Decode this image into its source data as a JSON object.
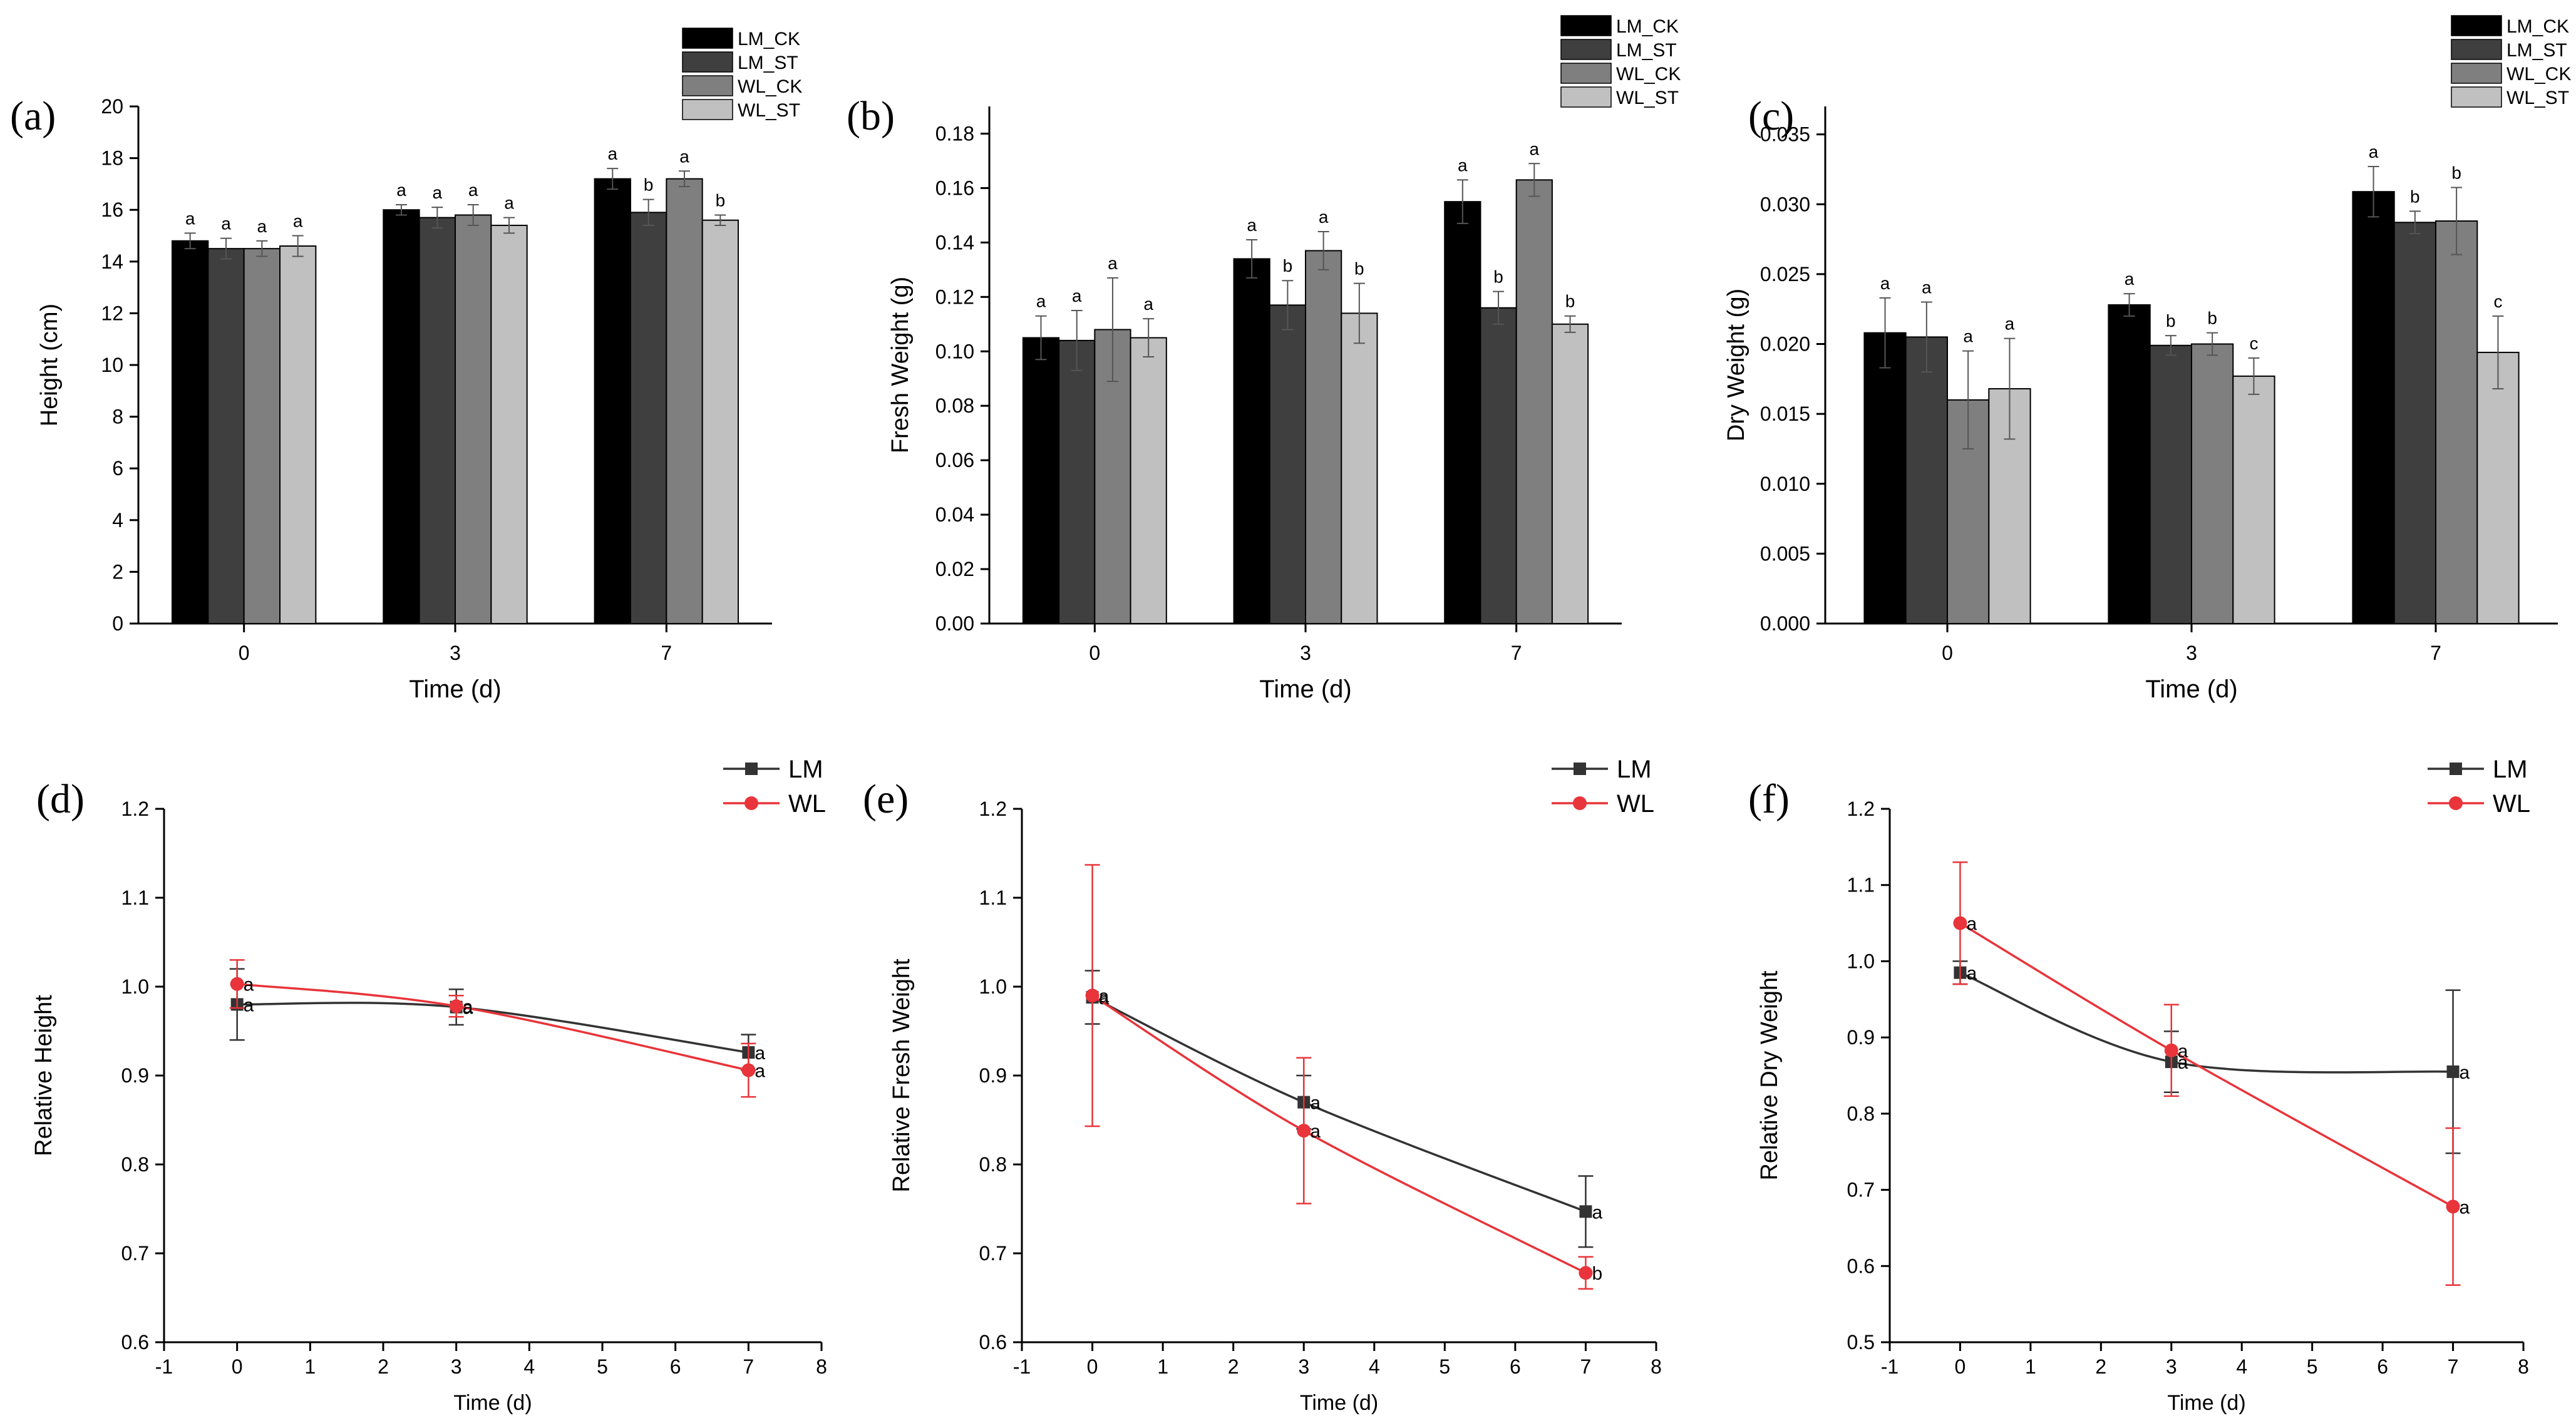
{
  "colors": {
    "LM_CK": "#000000",
    "LM_ST": "#3f3f3f",
    "WL_CK": "#7f7f7f",
    "WL_ST": "#c0c0c0",
    "LM_line": "#333333",
    "WL_line": "#e8343a"
  },
  "chart_data": [
    {
      "id": "a",
      "type": "bar",
      "panel_label": "(a)",
      "xlabel": "Time (d)",
      "ylabel": "Height (cm)",
      "categories": [
        "0",
        "3",
        "7"
      ],
      "ylim": [
        0,
        20
      ],
      "yticks": [
        "0",
        "2",
        "4",
        "6",
        "8",
        "10",
        "12",
        "14",
        "16",
        "18",
        "20"
      ],
      "legend": [
        "LM_CK",
        "LM_ST",
        "WL_CK",
        "WL_ST"
      ],
      "series": [
        {
          "name": "LM_CK",
          "values": [
            14.8,
            16.0,
            17.2
          ],
          "errors": [
            0.3,
            0.2,
            0.4
          ],
          "letters": [
            "a",
            "a",
            "a"
          ]
        },
        {
          "name": "LM_ST",
          "values": [
            14.5,
            15.7,
            15.9
          ],
          "errors": [
            0.4,
            0.4,
            0.5
          ],
          "letters": [
            "a",
            "a",
            "b"
          ]
        },
        {
          "name": "WL_CK",
          "values": [
            14.5,
            15.8,
            17.2
          ],
          "errors": [
            0.3,
            0.4,
            0.3
          ],
          "letters": [
            "a",
            "a",
            "a"
          ]
        },
        {
          "name": "WL_ST",
          "values": [
            14.6,
            15.4,
            15.6
          ],
          "errors": [
            0.4,
            0.3,
            0.2
          ],
          "letters": [
            "a",
            "a",
            "b"
          ]
        }
      ]
    },
    {
      "id": "b",
      "type": "bar",
      "panel_label": "(b)",
      "xlabel": "Time (d)",
      "ylabel": "Fresh Weight (g)",
      "categories": [
        "0",
        "3",
        "7"
      ],
      "ylim": [
        0,
        0.19
      ],
      "yticks": [
        "0.00",
        "0.02",
        "0.04",
        "0.06",
        "0.08",
        "0.10",
        "0.12",
        "0.14",
        "0.16",
        "0.18"
      ],
      "legend": [
        "LM_CK",
        "LM_ST",
        "WL_CK",
        "WL_ST"
      ],
      "series": [
        {
          "name": "LM_CK",
          "values": [
            0.105,
            0.134,
            0.155
          ],
          "errors": [
            0.008,
            0.007,
            0.008
          ],
          "letters": [
            "a",
            "a",
            "a"
          ]
        },
        {
          "name": "LM_ST",
          "values": [
            0.104,
            0.117,
            0.116
          ],
          "errors": [
            0.011,
            0.009,
            0.006
          ],
          "letters": [
            "a",
            "b",
            "b"
          ]
        },
        {
          "name": "WL_CK",
          "values": [
            0.108,
            0.137,
            0.163
          ],
          "errors": [
            0.019,
            0.007,
            0.006
          ],
          "letters": [
            "a",
            "a",
            "a"
          ]
        },
        {
          "name": "WL_ST",
          "values": [
            0.105,
            0.114,
            0.11
          ],
          "errors": [
            0.007,
            0.011,
            0.003
          ],
          "letters": [
            "a",
            "b",
            "b"
          ]
        }
      ]
    },
    {
      "id": "c",
      "type": "bar",
      "panel_label": "(c)",
      "xlabel": "Time (d)",
      "ylabel": "Dry Weight (g)",
      "categories": [
        "0",
        "3",
        "7"
      ],
      "ylim": [
        0,
        0.037
      ],
      "yticks": [
        "0.000",
        "0.005",
        "0.010",
        "0.015",
        "0.020",
        "0.025",
        "0.030",
        "0.035"
      ],
      "legend": [
        "LM_CK",
        "LM_ST",
        "WL_CK",
        "WL_ST"
      ],
      "series": [
        {
          "name": "LM_CK",
          "values": [
            0.0208,
            0.0228,
            0.0309
          ],
          "errors": [
            0.0025,
            0.0008,
            0.0018
          ],
          "letters": [
            "a",
            "a",
            "a"
          ]
        },
        {
          "name": "LM_ST",
          "values": [
            0.0205,
            0.0199,
            0.0287
          ],
          "errors": [
            0.0025,
            0.0007,
            0.0008
          ],
          "letters": [
            "a",
            "b",
            "b"
          ]
        },
        {
          "name": "WL_CK",
          "values": [
            0.016,
            0.02,
            0.0288
          ],
          "errors": [
            0.0035,
            0.0008,
            0.0024
          ],
          "letters": [
            "a",
            "b",
            "b"
          ]
        },
        {
          "name": "WL_ST",
          "values": [
            0.0168,
            0.0177,
            0.0194
          ],
          "errors": [
            0.0036,
            0.0013,
            0.0026
          ],
          "letters": [
            "a",
            "c",
            "c"
          ]
        }
      ]
    },
    {
      "id": "d",
      "type": "line",
      "panel_label": "(d)",
      "xlabel": "Time (d)",
      "ylabel": "Relative Height",
      "xlim": [
        -1,
        8
      ],
      "ylim": [
        0.6,
        1.2
      ],
      "xticks": [
        "-1",
        "0",
        "1",
        "2",
        "3",
        "4",
        "5",
        "6",
        "7",
        "8"
      ],
      "yticks": [
        "0.6",
        "0.7",
        "0.8",
        "0.9",
        "1.0",
        "1.1",
        "1.2"
      ],
      "x": [
        0,
        3,
        7
      ],
      "legend": [
        "LM",
        "WL"
      ],
      "series": [
        {
          "name": "LM",
          "values": [
            0.98,
            0.977,
            0.926
          ],
          "errors": [
            0.04,
            0.02,
            0.02
          ],
          "letters": [
            "a",
            "a",
            "a"
          ]
        },
        {
          "name": "WL",
          "values": [
            1.003,
            0.978,
            0.906
          ],
          "errors": [
            0.027,
            0.012,
            0.03
          ],
          "letters": [
            "a",
            "a",
            "a"
          ]
        }
      ]
    },
    {
      "id": "e",
      "type": "line",
      "panel_label": "(e)",
      "xlabel": "Time (d)",
      "ylabel": "Relative Fresh Weight",
      "xlim": [
        -1,
        8
      ],
      "ylim": [
        0.6,
        1.2
      ],
      "xticks": [
        "-1",
        "0",
        "1",
        "2",
        "3",
        "4",
        "5",
        "6",
        "7",
        "8"
      ],
      "yticks": [
        "0.6",
        "0.7",
        "0.8",
        "0.9",
        "1.0",
        "1.1",
        "1.2"
      ],
      "x": [
        0,
        3,
        7
      ],
      "legend": [
        "LM",
        "WL"
      ],
      "series": [
        {
          "name": "LM",
          "values": [
            0.988,
            0.87,
            0.747
          ],
          "errors": [
            0.03,
            0.03,
            0.04
          ],
          "letters": [
            "a",
            "a",
            "a"
          ]
        },
        {
          "name": "WL",
          "values": [
            0.99,
            0.838,
            0.678
          ],
          "errors": [
            0.147,
            0.082,
            0.018
          ],
          "letters": [
            "a",
            "a",
            "b"
          ]
        }
      ]
    },
    {
      "id": "f",
      "type": "line",
      "panel_label": "(f)",
      "xlabel": "Time (d)",
      "ylabel": "Relative Dry Weight",
      "xlim": [
        -1,
        8
      ],
      "ylim": [
        0.5,
        1.2
      ],
      "xticks": [
        "-1",
        "0",
        "1",
        "2",
        "3",
        "4",
        "5",
        "6",
        "7",
        "8"
      ],
      "yticks": [
        "0.5",
        "0.6",
        "0.7",
        "0.8",
        "0.9",
        "1.0",
        "1.1",
        "1.2"
      ],
      "x": [
        0,
        3,
        7
      ],
      "legend": [
        "LM",
        "WL"
      ],
      "series": [
        {
          "name": "LM",
          "values": [
            0.985,
            0.868,
            0.855
          ],
          "errors": [
            0.015,
            0.04,
            0.107
          ],
          "letters": [
            "a",
            "a",
            "a"
          ]
        },
        {
          "name": "WL",
          "values": [
            1.05,
            0.883,
            0.678
          ],
          "errors": [
            0.08,
            0.06,
            0.103
          ],
          "letters": [
            "a",
            "a",
            "a"
          ]
        }
      ]
    }
  ]
}
